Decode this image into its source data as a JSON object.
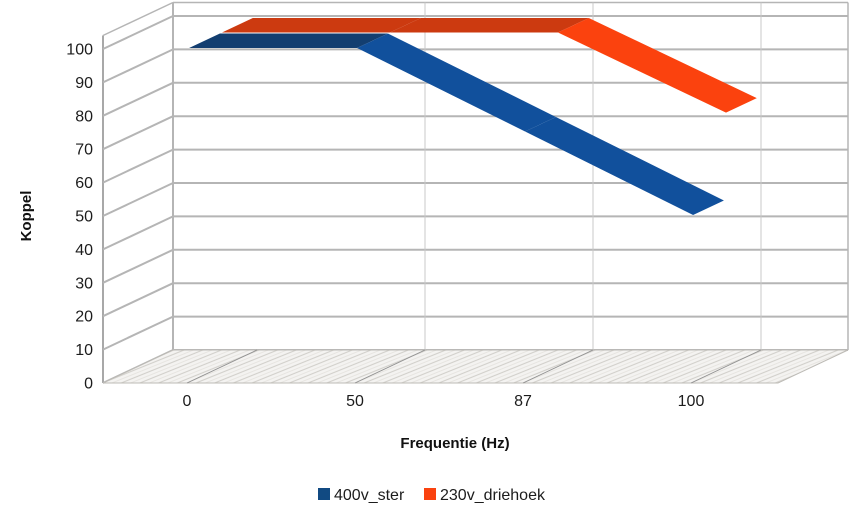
{
  "chart_data": {
    "type": "line",
    "style": "3d-ribbon",
    "title": "",
    "xlabel": "Frequentie (Hz)",
    "ylabel": "Koppel",
    "categories": [
      "0",
      "50",
      "87",
      "100"
    ],
    "yticks": [
      0,
      10,
      20,
      30,
      40,
      50,
      60,
      70,
      80,
      90,
      100
    ],
    "ylim": [
      0,
      100
    ],
    "grid": true,
    "legend_position": "bottom",
    "series": [
      {
        "name": "400v_ster",
        "color": "#114a82",
        "color_flat": "#133e70",
        "color_slope": "#11509c",
        "values": [
          100,
          100,
          75,
          50
        ]
      },
      {
        "name": "230v_driehoek",
        "color": "#fa420f",
        "color_flat": "#cc3a10",
        "color_slope": "#fb420e",
        "values": [
          100,
          100,
          100,
          76
        ]
      }
    ]
  }
}
